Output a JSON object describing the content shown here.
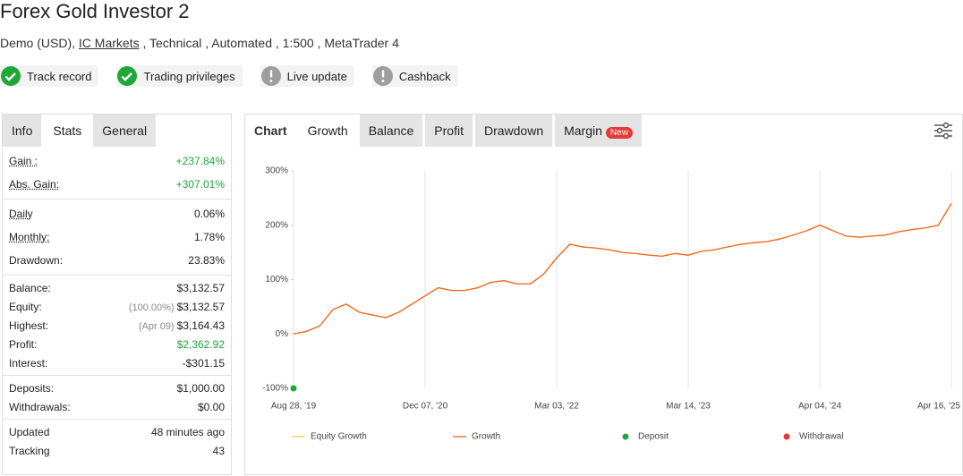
{
  "header": {
    "title": "Forex Gold Investor 2",
    "subtitle_before": "Demo (USD),",
    "subtitle_link": "IC Markets",
    "subtitle_after": ", Technical , Automated , 1:500 , MetaTrader 4",
    "badges": [
      {
        "label": "Track record",
        "icon": "check",
        "color": "#1ea838"
      },
      {
        "label": "Trading privileges",
        "icon": "check",
        "color": "#1ea838"
      },
      {
        "label": "Live update",
        "icon": "exclamation",
        "color": "#9e9e9e"
      },
      {
        "label": "Cashback",
        "icon": "exclamation",
        "color": "#9e9e9e"
      }
    ]
  },
  "stats_tabs": {
    "tabs": [
      "Info",
      "Stats",
      "General"
    ],
    "active": 1
  },
  "stats": [
    [
      {
        "label": "Gain :",
        "value": "+237.84%",
        "color": "#1ea838",
        "underline": true
      },
      {
        "label": "Abs. Gain:",
        "value": "+307.01%",
        "color": "#1ea838",
        "underline": true
      }
    ],
    [
      {
        "label": "Daily",
        "value": "0.06%",
        "underline": true
      },
      {
        "label": "Monthly:",
        "value": "1.78%",
        "underline": true
      },
      {
        "label": "Drawdown:",
        "value": "23.83%"
      }
    ],
    [
      {
        "label": "Balance:",
        "value": "$3,132.57"
      },
      {
        "label": "Equity:",
        "note": "(100.00%)",
        "value": "$3,132.57"
      },
      {
        "label": "Highest:",
        "note": "(Apr 09)",
        "value": "$3,164.43"
      },
      {
        "label": "Profit:",
        "value": "$2,362.92",
        "color": "#1ea838"
      },
      {
        "label": "Interest:",
        "value": "-$301.15"
      }
    ],
    [
      {
        "label": "Deposits:",
        "value": "$1,000.00"
      },
      {
        "label": "Withdrawals:",
        "value": "$0.00"
      }
    ],
    [
      {
        "label": "Updated",
        "value": "48 minutes ago"
      },
      {
        "label": "Tracking",
        "value": "43"
      }
    ]
  ],
  "chart_tabs": {
    "tabs": [
      "Chart",
      "Growth",
      "Balance",
      "Profit",
      "Drawdown",
      "Margin"
    ],
    "active": 1,
    "badge": "New"
  },
  "chart_data": {
    "type": "line",
    "grid": "x",
    "categories": [
      "Aug 28, '19",
      null,
      null,
      null,
      null,
      null,
      null,
      null,
      null,
      null,
      "Dec 07, '20",
      null,
      null,
      null,
      null,
      null,
      null,
      null,
      null,
      null,
      "Mar 03, '22",
      null,
      null,
      null,
      null,
      null,
      null,
      null,
      null,
      null,
      "Mar 14, '23",
      null,
      null,
      null,
      null,
      null,
      null,
      null,
      null,
      null,
      "Apr 04, '24",
      null,
      null,
      null,
      null,
      null,
      null,
      null,
      null,
      null,
      "Apr 16, '25"
    ],
    "ylim": [
      -100,
      300
    ],
    "yticks": [
      {
        "value": -100,
        "label": "-100%"
      },
      {
        "value": 0,
        "label": "0%"
      },
      {
        "value": 100,
        "label": "100%"
      },
      {
        "value": 200,
        "label": "200%"
      },
      {
        "value": 300,
        "label": "300%"
      }
    ],
    "series": [
      {
        "name": "Equity Growth",
        "color": "#f7c948",
        "values": [
          0,
          5,
          15,
          45,
          55,
          40,
          35,
          30,
          40,
          55,
          70,
          85,
          80,
          80,
          85,
          95,
          98,
          92,
          92,
          110,
          140,
          165,
          160,
          158,
          155,
          150,
          148,
          145,
          143,
          148,
          145,
          152,
          155,
          160,
          165,
          168,
          170,
          175,
          182,
          190,
          200,
          190,
          180,
          178,
          180,
          182,
          188,
          192,
          195,
          200,
          240
        ]
      },
      {
        "name": "Growth",
        "color": "#f26522",
        "values": [
          0,
          5,
          15,
          45,
          55,
          40,
          35,
          30,
          40,
          55,
          70,
          85,
          80,
          80,
          85,
          95,
          98,
          92,
          92,
          110,
          140,
          165,
          160,
          158,
          155,
          150,
          148,
          145,
          143,
          148,
          145,
          152,
          155,
          160,
          165,
          168,
          170,
          175,
          182,
          190,
          200,
          190,
          180,
          178,
          180,
          182,
          188,
          192,
          195,
          200,
          240
        ]
      },
      {
        "name": "Deposit",
        "color": "#1ea838",
        "marker": "point",
        "values": [
          -100,
          null,
          null,
          null,
          null,
          null,
          null,
          null,
          null,
          null,
          null,
          null,
          null,
          null,
          null,
          null,
          null,
          null,
          null,
          null,
          null,
          null,
          null,
          null,
          null,
          null,
          null,
          null,
          null,
          null,
          null,
          null,
          null,
          null,
          null,
          null,
          null,
          null,
          null,
          null,
          null,
          null,
          null,
          null,
          null,
          null,
          null,
          null,
          null,
          null,
          null
        ]
      },
      {
        "name": "Withdrawal",
        "color": "#e53935",
        "marker": "point",
        "values": [
          null,
          null,
          null,
          null,
          null,
          null,
          null,
          null,
          null,
          null,
          null,
          null,
          null,
          null,
          null,
          null,
          null,
          null,
          null,
          null,
          null,
          null,
          null,
          null,
          null,
          null,
          null,
          null,
          null,
          null,
          null,
          null,
          null,
          null,
          null,
          null,
          null,
          null,
          null,
          null,
          null,
          null,
          null,
          null,
          null,
          null,
          null,
          null,
          null,
          null,
          null
        ]
      }
    ]
  }
}
